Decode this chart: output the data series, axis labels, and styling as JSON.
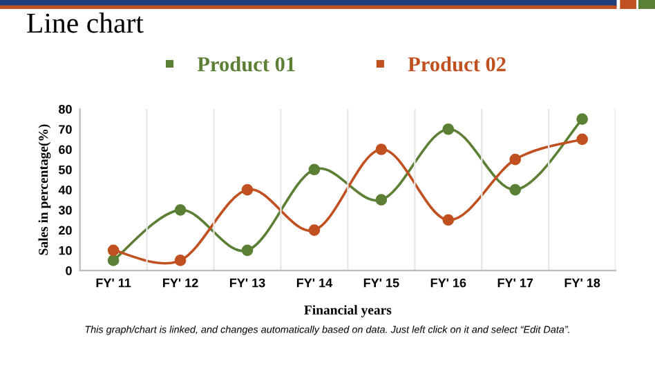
{
  "chart_data": {
    "type": "line",
    "title": "Line chart",
    "xlabel": "Financial years",
    "ylabel": "Sales in percentage(%)",
    "categories": [
      "FY' 11",
      "FY' 12",
      "FY' 13",
      "FY' 14",
      "FY' 15",
      "FY' 16",
      "FY' 17",
      "FY' 18"
    ],
    "series": [
      {
        "name": "Product 01",
        "color": "#5b7f34",
        "values": [
          5,
          30,
          10,
          50,
          35,
          70,
          40,
          75
        ]
      },
      {
        "name": "Product 02",
        "color": "#c0501f",
        "values": [
          10,
          5,
          40,
          20,
          60,
          25,
          55,
          65
        ]
      }
    ],
    "ylim": [
      0,
      80
    ],
    "yticks": [
      0,
      10,
      20,
      30,
      40,
      50,
      60,
      70,
      80
    ],
    "grid": "x",
    "legend": "top",
    "marker": "circle",
    "line_style": "solid",
    "annotations": [
      "This graph/chart is linked, and changes automatically based on data. Just left click on it and select “Edit Data”."
    ]
  }
}
